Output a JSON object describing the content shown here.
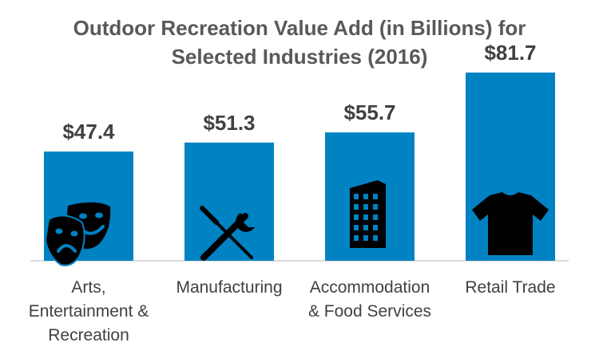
{
  "chart_data": {
    "type": "bar",
    "title": "Outdoor Recreation Value Add (in Billions) for Selected Industries (2016)",
    "title_lines": [
      "Outdoor Recreation Value Add (in Billions) for",
      "Selected Industries (2016)"
    ],
    "categories": [
      [
        "Arts,",
        "Entertainment &",
        "Recreation"
      ],
      [
        "Manufacturing"
      ],
      [
        "Accommodation",
        "& Food Services"
      ],
      [
        "Retail Trade"
      ]
    ],
    "values": [
      47.4,
      51.3,
      55.7,
      81.7
    ],
    "data_labels": [
      "$47.4",
      "$51.3",
      "$55.7",
      "$81.7"
    ],
    "icons": [
      "theater-masks-icon",
      "tools-icon",
      "building-icon",
      "tshirt-icon"
    ],
    "xlabel": "",
    "ylabel": "",
    "ylim": [
      0,
      90
    ],
    "grid": false,
    "legend": "none",
    "colors": {
      "bar": "#0082C3",
      "icon": "#000000",
      "label": "#404040",
      "title": "#595959",
      "axis": "#D9D9D9"
    }
  }
}
